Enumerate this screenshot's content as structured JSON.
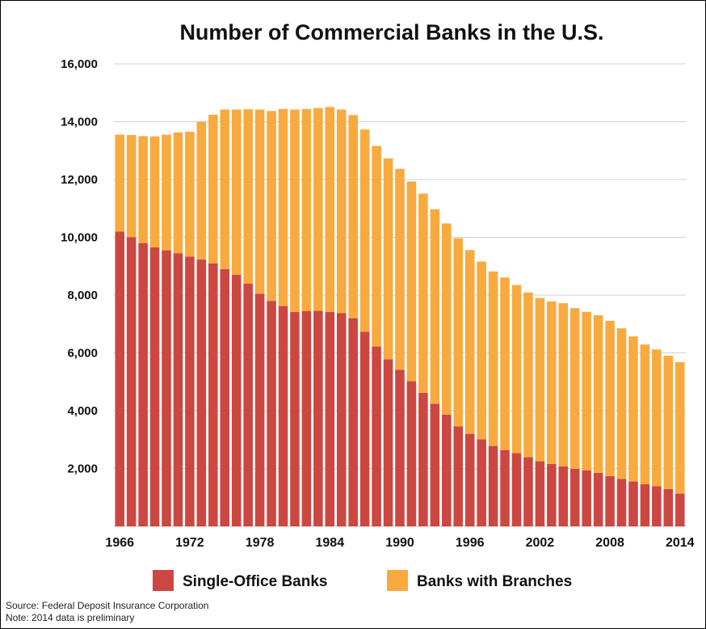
{
  "chart_data": {
    "type": "bar",
    "stacked": true,
    "title": "Number of Commercial Banks in the U.S.",
    "xlabel": "",
    "ylabel": "",
    "ylim": [
      0,
      16000
    ],
    "yticks": [
      2000,
      4000,
      6000,
      8000,
      10000,
      12000,
      14000,
      16000
    ],
    "ytick_labels": [
      "2,000",
      "4,000",
      "6,000",
      "8,000",
      "10,000",
      "12,000",
      "14,000",
      "16,000"
    ],
    "xtick_labels": [
      "1966",
      "1972",
      "1978",
      "1984",
      "1990",
      "1996",
      "2002",
      "2008",
      "2014"
    ],
    "grid": true,
    "legend_position": "bottom",
    "categories": [
      1966,
      1967,
      1968,
      1969,
      1970,
      1971,
      1972,
      1973,
      1974,
      1975,
      1976,
      1977,
      1978,
      1979,
      1980,
      1981,
      1982,
      1983,
      1984,
      1985,
      1986,
      1987,
      1988,
      1989,
      1990,
      1991,
      1992,
      1993,
      1994,
      1995,
      1996,
      1997,
      1998,
      1999,
      2000,
      2001,
      2002,
      2003,
      2004,
      2005,
      2006,
      2007,
      2008,
      2009,
      2010,
      2011,
      2012,
      2013,
      2014
    ],
    "series": [
      {
        "name": "Single-Office Banks",
        "color": "#cc4741",
        "values": [
          10200,
          10000,
          9800,
          9650,
          9550,
          9450,
          9330,
          9230,
          9100,
          8900,
          8700,
          8400,
          8050,
          7800,
          7620,
          7420,
          7450,
          7460,
          7420,
          7380,
          7200,
          6730,
          6220,
          5780,
          5420,
          5020,
          4620,
          4240,
          3860,
          3460,
          3200,
          3010,
          2780,
          2640,
          2530,
          2390,
          2250,
          2160,
          2070,
          1990,
          1940,
          1850,
          1740,
          1640,
          1550,
          1460,
          1390,
          1290,
          1130
        ]
      },
      {
        "name": "Banks with Branches",
        "color": "#f8aa3f",
        "values": [
          3350,
          3540,
          3700,
          3840,
          4000,
          4180,
          4320,
          4770,
          5140,
          5520,
          5720,
          6030,
          6370,
          6570,
          6820,
          7000,
          6990,
          7010,
          7090,
          7040,
          7030,
          7000,
          6940,
          6950,
          6950,
          6910,
          6890,
          6730,
          6620,
          6510,
          6360,
          6150,
          6040,
          5970,
          5820,
          5700,
          5650,
          5620,
          5650,
          5560,
          5480,
          5450,
          5370,
          5210,
          5020,
          4830,
          4730,
          4610,
          4550
        ]
      }
    ]
  },
  "notes": {
    "source": "Source: Federal Deposit Insurance Corporation",
    "note": "Note: 2014 data is preliminary"
  }
}
